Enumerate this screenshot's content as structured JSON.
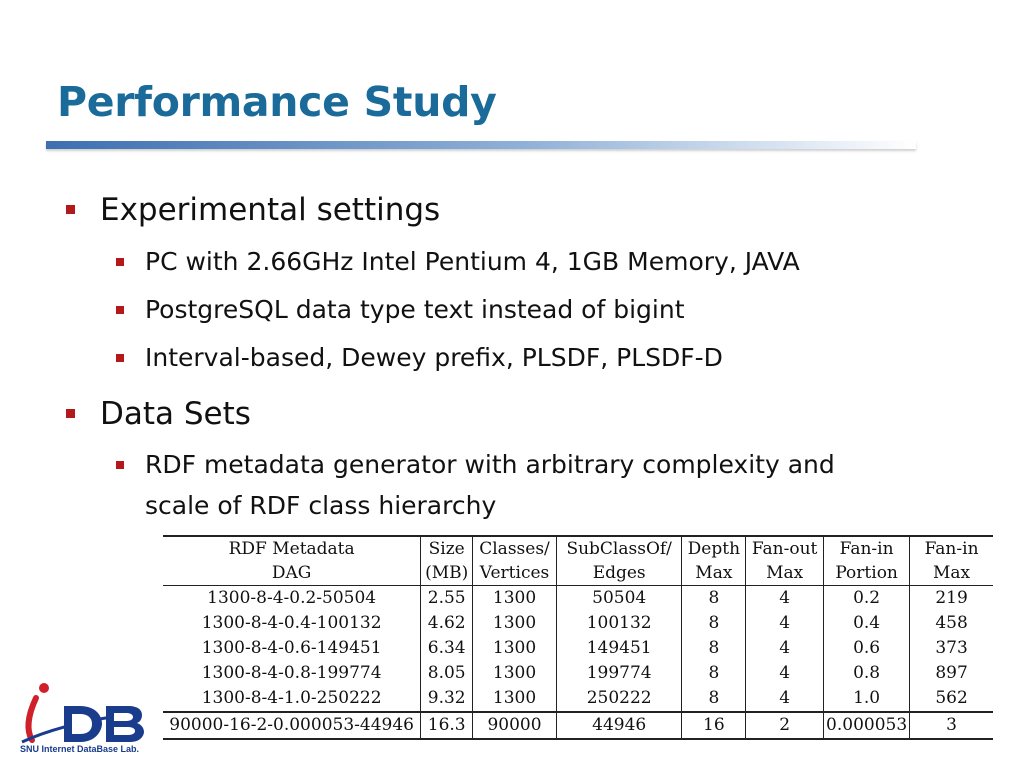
{
  "slide": {
    "title": "Performance Study"
  },
  "bullets": {
    "experimental": {
      "label": "Experimental settings",
      "items": [
        "PC with 2.66GHz Intel Pentium 4, 1GB Memory, JAVA",
        "PostgreSQL data type text instead of bigint",
        "Interval-based, Dewey prefix, PLSDF, PLSDF-D"
      ]
    },
    "datasets": {
      "label": "Data Sets",
      "items": [
        "RDF metadata generator with arbitrary complexity and",
        "scale of RDF class hierarchy"
      ]
    }
  },
  "table": {
    "headers_top": [
      "RDF Metadata",
      "Size",
      "Classes/",
      "SubClassOf/",
      "Depth",
      "Fan-out",
      "Fan-in",
      "Fan-in"
    ],
    "headers_bottom": [
      "DAG",
      "(MB)",
      "Vertices",
      "Edges",
      "Max",
      "Max",
      "Portion",
      "Max"
    ],
    "rows": [
      [
        "1300-8-4-0.2-50504",
        "2.55",
        "1300",
        "50504",
        "8",
        "4",
        "0.2",
        "219"
      ],
      [
        "1300-8-4-0.4-100132",
        "4.62",
        "1300",
        "100132",
        "8",
        "4",
        "0.4",
        "458"
      ],
      [
        "1300-8-4-0.6-149451",
        "6.34",
        "1300",
        "149451",
        "8",
        "4",
        "0.6",
        "373"
      ],
      [
        "1300-8-4-0.8-199774",
        "8.05",
        "1300",
        "199774",
        "8",
        "4",
        "0.8",
        "897"
      ],
      [
        "1300-8-4-1.0-250222",
        "9.32",
        "1300",
        "250222",
        "8",
        "4",
        "1.0",
        "562"
      ],
      [
        "90000-16-2-0.000053-44946",
        "16.3",
        "90000",
        "44946",
        "16",
        "2",
        "0.000053",
        "3"
      ]
    ]
  },
  "logo": {
    "text": "iDB",
    "caption": "SNU Internet DataBase Lab."
  },
  "colors": {
    "title": "#1a6a9a",
    "bullet": "#b3181b",
    "logo_blue": "#1a3c8c",
    "logo_red": "#d0202a"
  }
}
